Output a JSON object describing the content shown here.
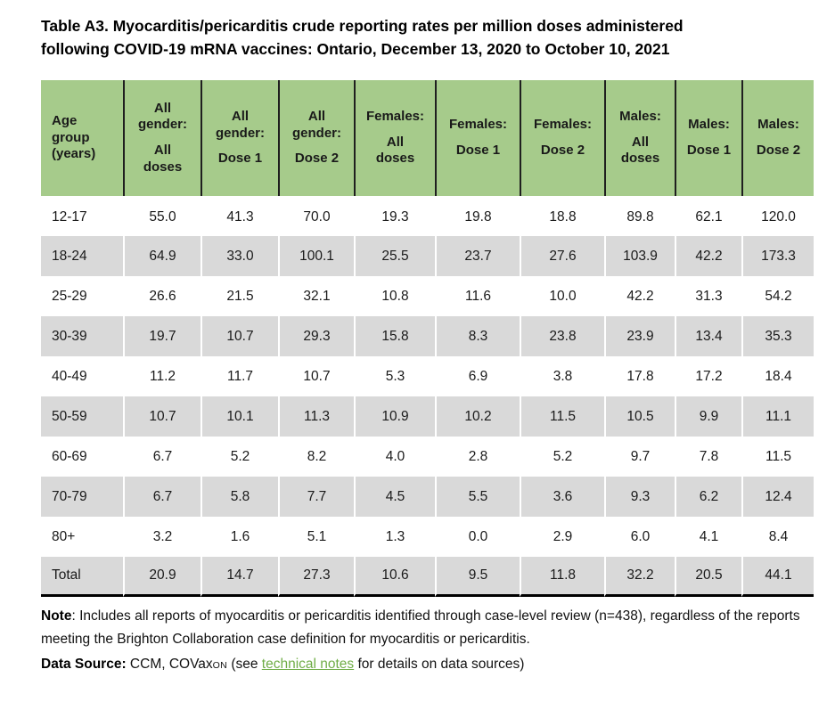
{
  "title": {
    "line1": "Table A3. Myocarditis/pericarditis crude reporting rates per million doses administered",
    "line2": "following COVID-19 mRNA vaccines: Ontario, December 13, 2020 to October 10, 2021"
  },
  "table": {
    "columns": [
      {
        "label": "Age\ngroup\n(years)"
      },
      {
        "part1": "All\ngender:",
        "part2": "All\ndoses"
      },
      {
        "part1": "All\ngender:",
        "part2": "Dose 1"
      },
      {
        "part1": "All\ngender:",
        "part2": "Dose 2"
      },
      {
        "part1": "Females:",
        "part2": "All\ndoses"
      },
      {
        "part1": "Females:",
        "part2": "Dose 1"
      },
      {
        "part1": "Females:",
        "part2": "Dose 2"
      },
      {
        "part1": "Males:",
        "part2": "All\ndoses"
      },
      {
        "part1": "Males:",
        "part2": "Dose 1"
      },
      {
        "part1": "Males:",
        "part2": "Dose 2"
      }
    ],
    "rows": [
      {
        "age": "12-17",
        "values": [
          "55.0",
          "41.3",
          "70.0",
          "19.3",
          "19.8",
          "18.8",
          "89.8",
          "62.1",
          "120.0"
        ]
      },
      {
        "age": "18-24",
        "values": [
          "64.9",
          "33.0",
          "100.1",
          "25.5",
          "23.7",
          "27.6",
          "103.9",
          "42.2",
          "173.3"
        ]
      },
      {
        "age": "25-29",
        "values": [
          "26.6",
          "21.5",
          "32.1",
          "10.8",
          "11.6",
          "10.0",
          "42.2",
          "31.3",
          "54.2"
        ]
      },
      {
        "age": "30-39",
        "values": [
          "19.7",
          "10.7",
          "29.3",
          "15.8",
          "8.3",
          "23.8",
          "23.9",
          "13.4",
          "35.3"
        ]
      },
      {
        "age": "40-49",
        "values": [
          "11.2",
          "11.7",
          "10.7",
          "5.3",
          "6.9",
          "3.8",
          "17.8",
          "17.2",
          "18.4"
        ]
      },
      {
        "age": "50-59",
        "values": [
          "10.7",
          "10.1",
          "11.3",
          "10.9",
          "10.2",
          "11.5",
          "10.5",
          "9.9",
          "11.1"
        ]
      },
      {
        "age": "60-69",
        "values": [
          "6.7",
          "5.2",
          "8.2",
          "4.0",
          "2.8",
          "5.2",
          "9.7",
          "7.8",
          "11.5"
        ]
      },
      {
        "age": "70-79",
        "values": [
          "6.7",
          "5.8",
          "7.7",
          "4.5",
          "5.5",
          "3.6",
          "9.3",
          "6.2",
          "12.4"
        ]
      },
      {
        "age": "80+",
        "values": [
          "3.2",
          "1.6",
          "5.1",
          "1.3",
          "0.0",
          "2.9",
          "6.0",
          "4.1",
          "8.4"
        ]
      },
      {
        "age": "Total",
        "values": [
          "20.9",
          "14.7",
          "27.3",
          "10.6",
          "9.5",
          "11.8",
          "32.2",
          "20.5",
          "44.1"
        ]
      }
    ]
  },
  "footer": {
    "note_label": "Note",
    "note_text": ": Includes all reports of myocarditis or pericarditis identified through case-level review (n=438), regardless of the reports meeting the Brighton Collaboration case definition for myocarditis or pericarditis.",
    "source_label": "Data Source:",
    "source_pre": " CCM, COVax",
    "source_smallcaps": "ON",
    "source_mid": " (see ",
    "link_text": "technical notes",
    "source_post": " for details on data sources)"
  },
  "colors": {
    "header_green": "#a6cb8b",
    "row_gray": "#d9d9d9",
    "link_green": "#70ad47"
  }
}
